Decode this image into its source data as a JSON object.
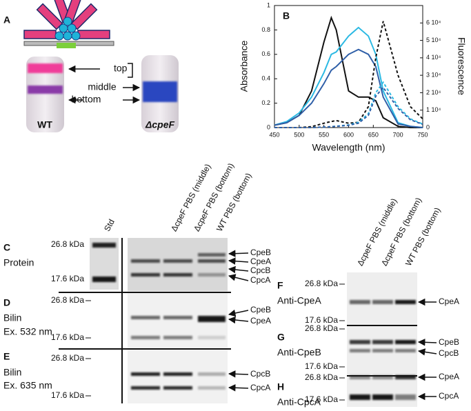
{
  "panel_a": {
    "label": "A",
    "tube_labels": [
      "top",
      "middle",
      "bottom"
    ],
    "wt": "WT",
    "mutant": "ΔcpeF"
  },
  "chart_data": {
    "type": "line",
    "label": "B",
    "x_label": "Wavelength (nm)",
    "y_label": "Absorbance",
    "y2_label": "Fluorescence",
    "x": [
      450,
      475,
      500,
      525,
      550,
      565,
      575,
      600,
      620,
      640,
      655,
      670,
      700,
      725,
      750
    ],
    "xlim": [
      450,
      750
    ],
    "xticks": [
      450,
      500,
      550,
      600,
      650,
      700,
      750
    ],
    "ylim": [
      0,
      1
    ],
    "yticks": [
      0,
      0.2,
      0.4,
      0.6,
      0.8,
      1
    ],
    "y2lim": [
      0,
      70000
    ],
    "y2ticks": [
      0,
      {
        "value": 10000,
        "label": "1 10⁴"
      },
      {
        "value": 20000,
        "label": "2 10⁴"
      },
      {
        "value": 30000,
        "label": "3 10⁴"
      },
      {
        "value": 40000,
        "label": "4 10⁴"
      },
      {
        "value": 50000,
        "label": "5 10⁴"
      },
      {
        "value": 60000,
        "label": "6 10⁴"
      }
    ],
    "series": [
      {
        "color": "#111111",
        "style": "solid",
        "values": [
          0.02,
          0.04,
          0.1,
          0.3,
          0.7,
          0.9,
          0.8,
          0.3,
          0.25,
          0.25,
          0.22,
          0.08,
          0.01,
          0,
          0
        ]
      },
      {
        "color": "#2bb9e3",
        "style": "solid",
        "values": [
          0.02,
          0.05,
          0.12,
          0.25,
          0.45,
          0.6,
          0.62,
          0.75,
          0.82,
          0.75,
          0.6,
          0.3,
          0.04,
          0.01,
          0
        ]
      },
      {
        "color": "#2f5fa8",
        "style": "solid",
        "values": [
          0.02,
          0.04,
          0.1,
          0.2,
          0.36,
          0.47,
          0.5,
          0.6,
          0.64,
          0.6,
          0.5,
          0.25,
          0.03,
          0.01,
          0
        ]
      },
      {
        "color": "#111111",
        "style": "dashed",
        "axis": "y2",
        "values": [
          0,
          0,
          0,
          500,
          2500,
          3500,
          4000,
          2500,
          3000,
          12000,
          40000,
          61000,
          30000,
          12000,
          5000
        ]
      },
      {
        "color": "#2bb9e3",
        "style": "dashed",
        "axis": "y2",
        "values": [
          0,
          0,
          0,
          0,
          300,
          500,
          800,
          1500,
          3000,
          8000,
          20000,
          26000,
          12000,
          5000,
          2000
        ]
      },
      {
        "color": "#2f5fa8",
        "style": "dashed",
        "axis": "y2",
        "values": [
          0,
          0,
          0,
          0,
          300,
          500,
          700,
          1300,
          2500,
          7000,
          18000,
          23000,
          11000,
          4500,
          1800
        ]
      }
    ]
  },
  "gel_lanes_left": [
    "Std",
    "ΔcpeF PBS (middle)",
    "ΔcpeF PBS (bottom)",
    "WT PBS (bottom)"
  ],
  "gel_lanes_right": [
    "ΔcpeF PBS (middle)",
    "ΔcpeF PBS (bottom)",
    "WT PBS (bottom)"
  ],
  "left_panels": [
    {
      "label": "C",
      "title": [
        "Protein"
      ],
      "markers": [
        "26.8 kDa",
        "17.6 kDa"
      ],
      "bands": [
        "CpeB",
        "CpeA",
        "CpcB",
        "CpcA"
      ]
    },
    {
      "label": "D",
      "title": [
        "Bilin",
        "Ex. 532 nm"
      ],
      "markers": [
        "26.8 kDa",
        "17.6 kDa"
      ],
      "bands": [
        "CpeB",
        "CpeA"
      ]
    },
    {
      "label": "E",
      "title": [
        "Bilin",
        "Ex. 635 nm"
      ],
      "markers": [
        "26.8 kDa",
        "17.6 kDa"
      ],
      "bands": [
        "CpcB",
        "CpcA"
      ]
    }
  ],
  "right_panels": [
    {
      "label": "F",
      "title": "Anti-CpeA",
      "markers": [
        "26.8 kDa",
        "17.6 kDa"
      ],
      "bands": [
        "CpeA"
      ]
    },
    {
      "label": "G",
      "title": "Anti-CpeB",
      "markers": [
        "26.8 kDa",
        "17.6 kDa"
      ],
      "bands": [
        "CpeB",
        "CpcB"
      ]
    },
    {
      "label": "H",
      "title": "Anti-CpcA",
      "markers": [
        "26.8 kDa",
        "17.6 kDa"
      ],
      "bands": [
        "CpeA",
        "CpcA"
      ]
    }
  ]
}
